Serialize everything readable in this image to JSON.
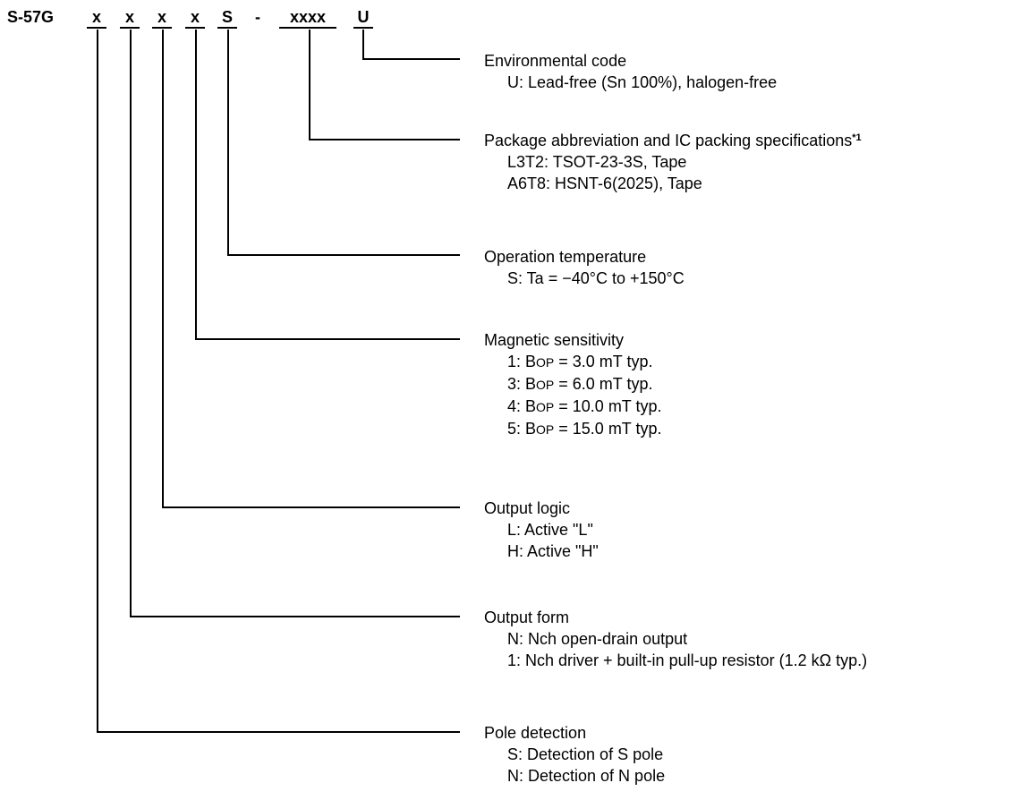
{
  "part_number": {
    "prefix": "S-57G",
    "segments": [
      "x",
      "x",
      "x",
      "x",
      "S",
      "-",
      "xxxx",
      "U"
    ]
  },
  "blocks": {
    "environmental": {
      "title": "Environmental code",
      "options": [
        "U:  Lead-free (Sn 100%), halogen-free"
      ]
    },
    "package": {
      "title": "Package abbreviation and IC packing specifications",
      "footnote": "*1",
      "options": [
        "L3T2:  TSOT-23-3S, Tape",
        "A6T8:  HSNT-6(2025), Tape"
      ]
    },
    "temperature": {
      "title": "Operation temperature",
      "options": [
        "S:  Ta = −40°C to +150°C"
      ]
    },
    "magnetic": {
      "title": "Magnetic sensitivity",
      "options": [
        {
          "code": "1:  B",
          "sub": "OP",
          "value": " = 3.0 mT typ."
        },
        {
          "code": "3:  B",
          "sub": "OP",
          "value": " = 6.0 mT typ."
        },
        {
          "code": "4:  B",
          "sub": "OP",
          "value": " = 10.0 mT typ."
        },
        {
          "code": "5:  B",
          "sub": "OP",
          "value": " = 15.0 mT typ."
        }
      ]
    },
    "output_logic": {
      "title": "Output logic",
      "options": [
        "L:  Active \"L\"",
        "H:  Active \"H\""
      ]
    },
    "output_form": {
      "title": "Output form",
      "options": [
        "N:  Nch open-drain output",
        "1:  Nch driver + built-in pull-up resistor (1.2 kΩ typ.)"
      ]
    },
    "pole": {
      "title": "Pole detection",
      "options": [
        "S:  Detection of S pole",
        "N:  Detection of N pole"
      ]
    }
  }
}
